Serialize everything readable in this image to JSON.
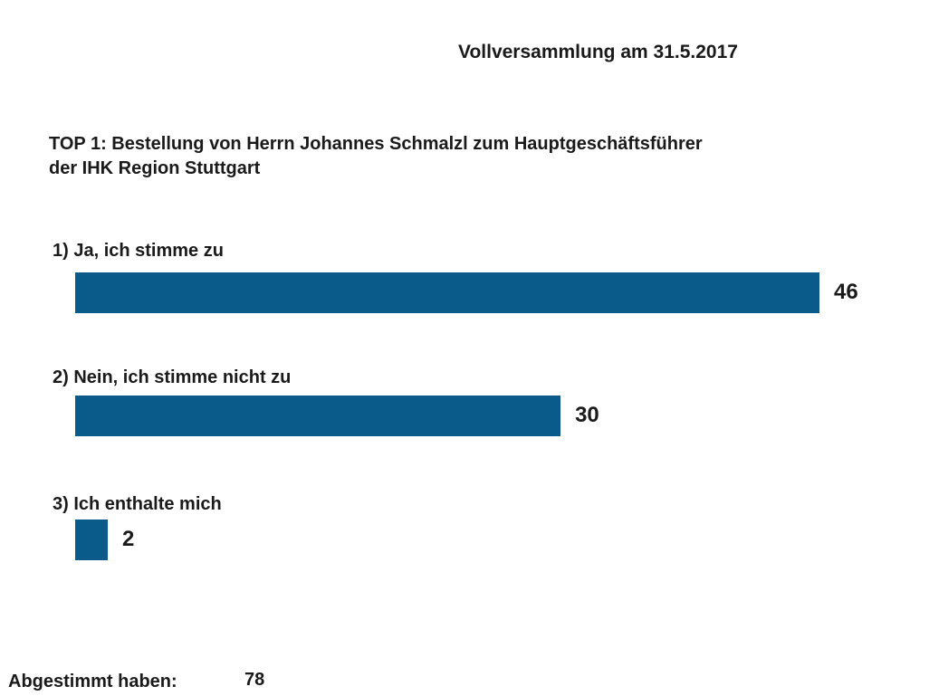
{
  "header": {
    "title": "Vollversammlung am 31.5.2017"
  },
  "question": {
    "line1": "TOP 1: Bestellung von Herrn Johannes Schmalzl zum Hauptgeschäftsführer",
    "line2": "der IHK Region Stuttgart"
  },
  "chart_data": {
    "type": "bar",
    "orientation": "horizontal",
    "categories": [
      "1) Ja, ich stimme zu",
      "2) Nein, ich stimme nicht zu",
      "3) Ich enthalte mich"
    ],
    "values": [
      46,
      30,
      2
    ],
    "bar_color": "#0a5a8a",
    "gridlines": false,
    "legend": "none"
  },
  "footer": {
    "label": "Abgestimmt haben:",
    "value": "78"
  }
}
